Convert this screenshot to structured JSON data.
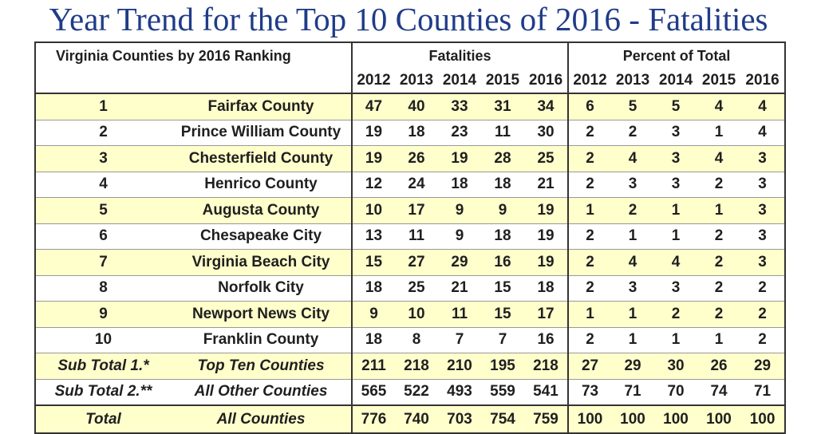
{
  "title": "Year Trend for the Top 10 Counties of 2016 - Fatalities",
  "header": {
    "ranking_label": "Virginia Counties by 2016 Ranking",
    "fatalities_label": "Fatalities",
    "percent_label": "Percent of Total",
    "years": [
      "2012",
      "2013",
      "2014",
      "2015",
      "2016"
    ]
  },
  "chart_data": {
    "type": "table",
    "columns": [
      "Rank",
      "County",
      "Fatalities 2012",
      "Fatalities 2013",
      "Fatalities 2014",
      "Fatalities 2015",
      "Fatalities 2016",
      "Percent 2012",
      "Percent 2013",
      "Percent 2014",
      "Percent 2015",
      "Percent 2016"
    ],
    "rows": [
      {
        "rank": "1",
        "name": "Fairfax County",
        "fatalities": [
          "47",
          "40",
          "33",
          "31",
          "34"
        ],
        "percent": [
          "6",
          "5",
          "5",
          "4",
          "4"
        ]
      },
      {
        "rank": "2",
        "name": "Prince William County",
        "fatalities": [
          "19",
          "18",
          "23",
          "11",
          "30"
        ],
        "percent": [
          "2",
          "2",
          "3",
          "1",
          "4"
        ]
      },
      {
        "rank": "3",
        "name": "Chesterfield County",
        "fatalities": [
          "19",
          "26",
          "19",
          "28",
          "25"
        ],
        "percent": [
          "2",
          "4",
          "3",
          "4",
          "3"
        ]
      },
      {
        "rank": "4",
        "name": "Henrico County",
        "fatalities": [
          "12",
          "24",
          "18",
          "18",
          "21"
        ],
        "percent": [
          "2",
          "3",
          "3",
          "2",
          "3"
        ]
      },
      {
        "rank": "5",
        "name": "Augusta County",
        "fatalities": [
          "10",
          "17",
          "9",
          "9",
          "19"
        ],
        "percent": [
          "1",
          "2",
          "1",
          "1",
          "3"
        ]
      },
      {
        "rank": "6",
        "name": "Chesapeake City",
        "fatalities": [
          "13",
          "11",
          "9",
          "18",
          "19"
        ],
        "percent": [
          "2",
          "1",
          "1",
          "2",
          "3"
        ]
      },
      {
        "rank": "7",
        "name": "Virginia Beach City",
        "fatalities": [
          "15",
          "27",
          "29",
          "16",
          "19"
        ],
        "percent": [
          "2",
          "4",
          "4",
          "2",
          "3"
        ]
      },
      {
        "rank": "8",
        "name": "Norfolk City",
        "fatalities": [
          "18",
          "25",
          "21",
          "15",
          "18"
        ],
        "percent": [
          "2",
          "3",
          "3",
          "2",
          "2"
        ]
      },
      {
        "rank": "9",
        "name": "Newport News City",
        "fatalities": [
          "9",
          "10",
          "11",
          "15",
          "17"
        ],
        "percent": [
          "1",
          "1",
          "2",
          "2",
          "2"
        ]
      },
      {
        "rank": "10",
        "name": "Franklin County",
        "fatalities": [
          "18",
          "8",
          "7",
          "7",
          "16"
        ],
        "percent": [
          "2",
          "1",
          "1",
          "1",
          "2"
        ]
      }
    ],
    "subtotals": [
      {
        "label": "Sub Total 1.*",
        "name": "Top Ten Counties",
        "fatalities": [
          "211",
          "218",
          "210",
          "195",
          "218"
        ],
        "percent": [
          "27",
          "29",
          "30",
          "26",
          "29"
        ]
      },
      {
        "label": "Sub Total 2.**",
        "name": "All Other Counties",
        "fatalities": [
          "565",
          "522",
          "493",
          "559",
          "541"
        ],
        "percent": [
          "73",
          "71",
          "70",
          "74",
          "71"
        ]
      }
    ],
    "total": {
      "label": "Total",
      "name": "All Counties",
      "fatalities": [
        "776",
        "740",
        "703",
        "754",
        "759"
      ],
      "percent": [
        "100",
        "100",
        "100",
        "100",
        "100"
      ]
    }
  }
}
